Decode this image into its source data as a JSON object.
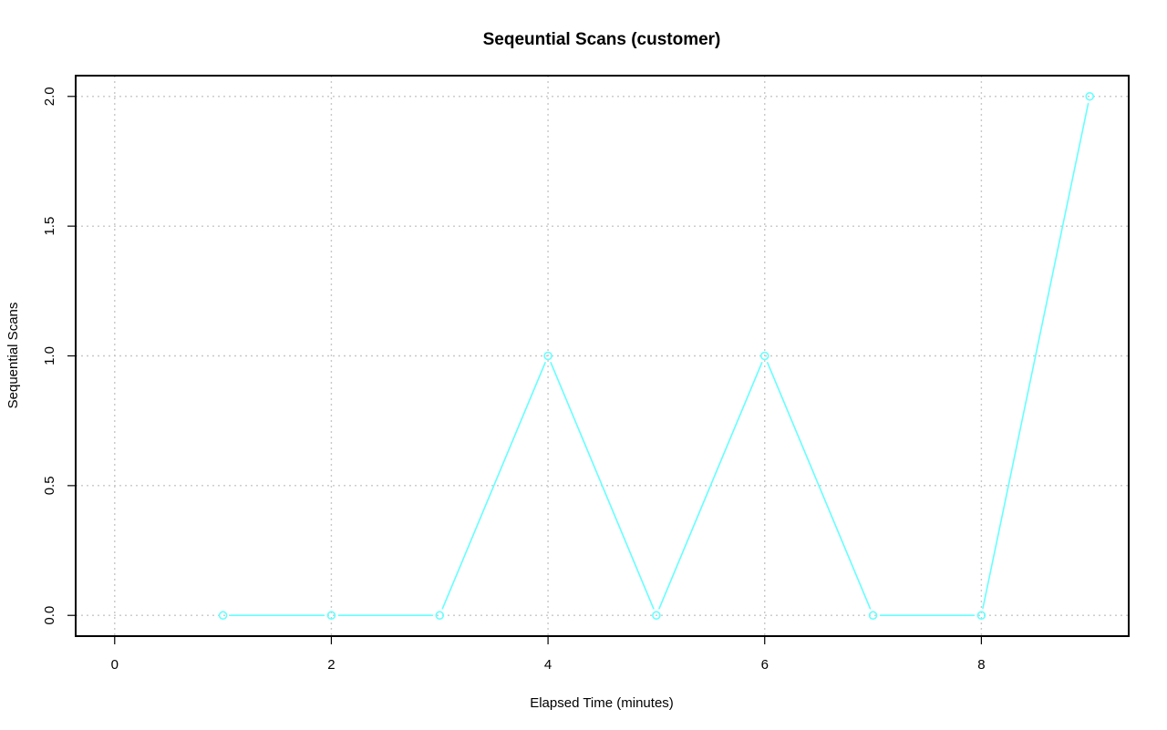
{
  "chart_data": {
    "type": "line",
    "title": "Seqeuntial Scans (customer)",
    "xlabel": "Elapsed Time (minutes)",
    "ylabel": "Sequential Scans",
    "x": [
      1,
      2,
      3,
      4,
      5,
      6,
      7,
      8,
      9
    ],
    "series": [
      {
        "values": [
          0,
          0,
          0,
          1,
          0,
          1,
          0,
          0,
          2
        ],
        "color": "#66ffff",
        "markers": "open-circle"
      }
    ],
    "xlim": [
      -0.36,
      9.36
    ],
    "ylim": [
      -0.08,
      2.08
    ],
    "xticks": [
      0,
      2,
      4,
      6,
      8
    ],
    "xtick_labels": [
      "0",
      "2",
      "4",
      "6",
      "8"
    ],
    "yticks": [
      0,
      0.5,
      1,
      1.5,
      2
    ],
    "ytick_labels": [
      "0.0",
      "0.5",
      "1.0",
      "1.5",
      "2.0"
    ],
    "grid": true,
    "grid_style": "dotted",
    "legend": "none"
  }
}
